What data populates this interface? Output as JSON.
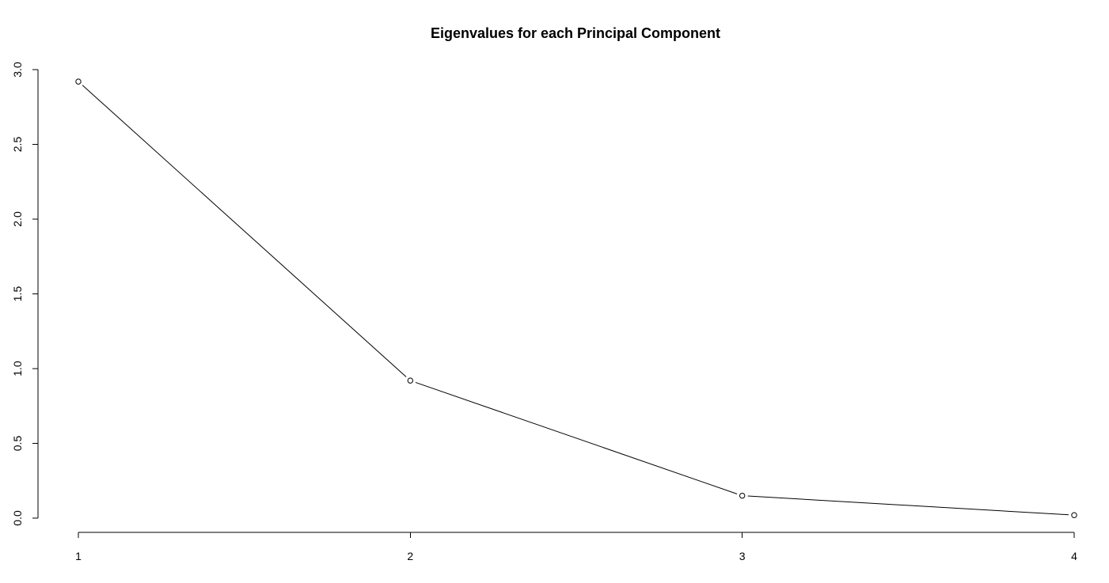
{
  "chart_data": {
    "type": "line",
    "title": "Eigenvalues for each Principal Component",
    "xlabel": "",
    "ylabel": "",
    "x": [
      1,
      2,
      3,
      4
    ],
    "series": [
      {
        "values": [
          2.92,
          0.92,
          0.15,
          0.02
        ]
      }
    ],
    "xticks": [
      "1",
      "2",
      "3",
      "4"
    ],
    "yticks": [
      "0.0",
      "0.5",
      "1.0",
      "1.5",
      "2.0",
      "2.5",
      "3.0"
    ],
    "xlim": [
      1,
      4
    ],
    "ylim": [
      0,
      3
    ],
    "grid": false,
    "legend": "none",
    "markers": "open-circle",
    "colors": {
      "line": "#000000",
      "marker_fill": "#ffffff"
    }
  }
}
